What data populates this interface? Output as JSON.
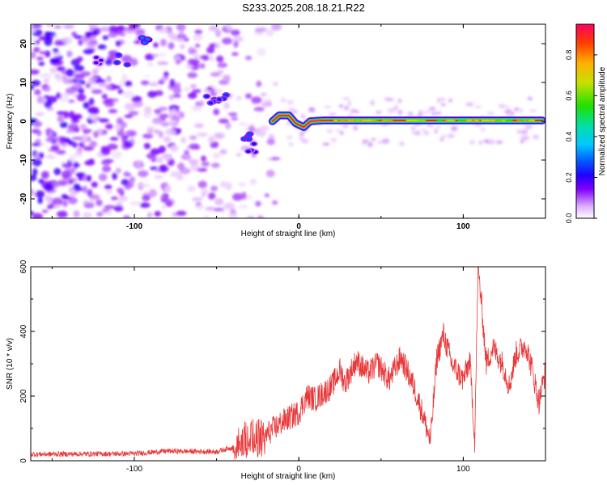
{
  "title": "S233.2025.208.18.21.R22",
  "chart_data": [
    {
      "type": "heatmap",
      "xlabel": "Height of straight line (km)",
      "ylabel": "Frequency (Hz)",
      "xlim": [
        -163,
        150
      ],
      "ylim": [
        -25,
        25
      ],
      "xticks": [
        "-100",
        "0",
        "100"
      ],
      "yticks": [
        "20",
        "10",
        "0",
        "-10",
        "-20"
      ],
      "colorbar": {
        "label": "Normalized spectral amplitude",
        "range": [
          0,
          0.95
        ],
        "ticks": [
          "0.0",
          "0.2",
          "0.4",
          "0.6",
          "0.8"
        ]
      },
      "ridge": [
        {
          "x": -16,
          "y": 0
        },
        {
          "x": -12,
          "y": 1.5
        },
        {
          "x": -6,
          "y": 1.5
        },
        {
          "x": -2,
          "y": -0.5
        },
        {
          "x": 3,
          "y": -1.5
        },
        {
          "x": 7,
          "y": 0
        },
        {
          "x": 15,
          "y": 0.2
        },
        {
          "x": 148,
          "y": 0.2
        }
      ],
      "scattered_spots": [
        {
          "x": -95,
          "y": 20,
          "amp": 0.25
        },
        {
          "x": -108,
          "y": 16,
          "amp": 0.2
        },
        {
          "x": -48,
          "y": 6.5,
          "amp": 0.2
        },
        {
          "x": -52,
          "y": 5,
          "amp": 0.18
        },
        {
          "x": -30,
          "y": -4,
          "amp": 0.22
        },
        {
          "x": -27,
          "y": -7,
          "amp": 0.15
        },
        {
          "x": -120,
          "y": 15,
          "amp": 0.12
        }
      ]
    },
    {
      "type": "line",
      "xlabel": "Height of straight line (km)",
      "ylabel": "SNR (10 * v/v)",
      "xlim": [
        -163,
        150
      ],
      "ylim": [
        0,
        600
      ],
      "xticks": [
        "-100",
        "0",
        "100"
      ],
      "yticks": [
        "600",
        "400",
        "200",
        "0"
      ],
      "color": "#e8383a",
      "envelope": [
        {
          "x": -163,
          "y": 20
        },
        {
          "x": -100,
          "y": 22
        },
        {
          "x": -80,
          "y": 30
        },
        {
          "x": -50,
          "y": 28
        },
        {
          "x": -38,
          "y": 45
        },
        {
          "x": -34,
          "y": 80
        },
        {
          "x": -28,
          "y": 90
        },
        {
          "x": -20,
          "y": 80
        },
        {
          "x": -10,
          "y": 120
        },
        {
          "x": 0,
          "y": 150
        },
        {
          "x": 5,
          "y": 200
        },
        {
          "x": 10,
          "y": 190
        },
        {
          "x": 20,
          "y": 230
        },
        {
          "x": 25,
          "y": 280
        },
        {
          "x": 28,
          "y": 240
        },
        {
          "x": 35,
          "y": 310
        },
        {
          "x": 42,
          "y": 270
        },
        {
          "x": 48,
          "y": 300
        },
        {
          "x": 55,
          "y": 250
        },
        {
          "x": 62,
          "y": 320
        },
        {
          "x": 70,
          "y": 230
        },
        {
          "x": 75,
          "y": 150
        },
        {
          "x": 80,
          "y": 60
        },
        {
          "x": 84,
          "y": 320
        },
        {
          "x": 88,
          "y": 390
        },
        {
          "x": 93,
          "y": 300
        },
        {
          "x": 100,
          "y": 250
        },
        {
          "x": 104,
          "y": 310
        },
        {
          "x": 107,
          "y": 60
        },
        {
          "x": 109,
          "y": 600
        },
        {
          "x": 111,
          "y": 490
        },
        {
          "x": 114,
          "y": 300
        },
        {
          "x": 118,
          "y": 350
        },
        {
          "x": 124,
          "y": 300
        },
        {
          "x": 128,
          "y": 230
        },
        {
          "x": 132,
          "y": 330
        },
        {
          "x": 138,
          "y": 360
        },
        {
          "x": 142,
          "y": 280
        },
        {
          "x": 146,
          "y": 180
        },
        {
          "x": 150,
          "y": 280
        }
      ]
    }
  ]
}
